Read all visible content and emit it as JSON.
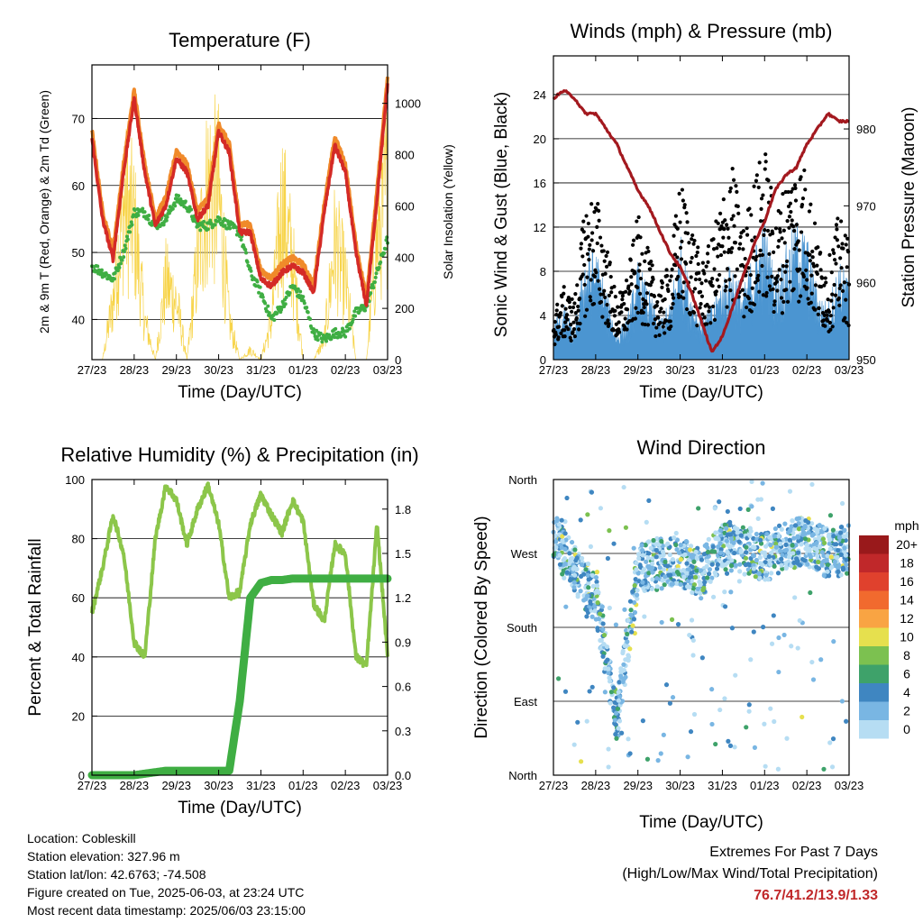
{
  "x_ticks": [
    "27/23",
    "28/23",
    "29/23",
    "30/23",
    "31/23",
    "01/23",
    "02/23",
    "03/23"
  ],
  "temperature": {
    "title": "Temperature (F)",
    "ylabel": "2m & 9m T (Red, Orange) & 2m Td (Green)",
    "ylabel2": "Solar Insolation (Yellow)",
    "xlabel": "Time (Day/UTC)",
    "yticks": [
      "40",
      "50",
      "60",
      "70"
    ],
    "y2ticks": [
      "0",
      "200",
      "400",
      "600",
      "800",
      "1000"
    ]
  },
  "winds": {
    "title": "Winds (mph) & Pressure (mb)",
    "ylabel": "Sonic Wind & Gust (Blue, Black)",
    "ylabel2": "Station Pressure (Maroon)",
    "xlabel": "Time (Day/UTC)",
    "yticks": [
      "0",
      "4",
      "8",
      "12",
      "16",
      "20",
      "24"
    ],
    "y2ticks": [
      "950",
      "960",
      "970",
      "980"
    ]
  },
  "humidity": {
    "title": "Relative Humidity (%) & Precipitation (in)",
    "ylabel": "Percent & Total Rainfall",
    "xlabel": "Time (Day/UTC)",
    "yticks": [
      "0",
      "20",
      "40",
      "60",
      "80",
      "100"
    ],
    "y2ticks": [
      "0.0",
      "0.3",
      "0.6",
      "0.9",
      "1.2",
      "1.5",
      "1.8"
    ]
  },
  "direction": {
    "title": "Wind Direction",
    "ylabel": "Direction (Colored By Speed)",
    "xlabel": "Time (Day/UTC)",
    "yticks": [
      "North",
      "East",
      "South",
      "West",
      "North"
    ],
    "legend_title": "mph",
    "legend_labels": [
      "20+",
      "18",
      "16",
      "14",
      "12",
      "10",
      "8",
      "6",
      "4",
      "2",
      "0"
    ],
    "legend_colors": [
      "#99191b",
      "#c0282a",
      "#e0412d",
      "#f16a2e",
      "#f9a443",
      "#e6e04e",
      "#7cc150",
      "#3ea26a",
      "#3f86c1",
      "#79b6e3",
      "#b6ddf3"
    ]
  },
  "footer": {
    "location": "Location: Cobleskill",
    "elevation": "Station elevation: 327.96 m",
    "latlon": "Station lat/lon: 42.6763; -74.508",
    "created": "Figure created on Tue, 2025-06-03, at 23:24 UTC",
    "recent": "Most recent data timestamp: 2025/06/03 23:15:00"
  },
  "extremes": {
    "title": "Extremes For Past 7 Days",
    "subtitle": "(High/Low/Max Wind/Total Precipitation)",
    "values": "76.7/41.2/13.9/1.33"
  },
  "chart_data": [
    {
      "type": "line",
      "panel": "temperature",
      "x_days": [
        0,
        0.25,
        0.5,
        0.75,
        1,
        1.25,
        1.5,
        1.75,
        2,
        2.25,
        2.5,
        2.75,
        3,
        3.25,
        3.5,
        3.75,
        4,
        4.25,
        4.5,
        4.75,
        5,
        5.25,
        5.5,
        5.75,
        6,
        6.25,
        6.5,
        6.75,
        7
      ],
      "series": [
        {
          "values": [
            67,
            55,
            49,
            62,
            73,
            62,
            54,
            57,
            64,
            62,
            55,
            57,
            68,
            65,
            53,
            53,
            46,
            45,
            47,
            48,
            47,
            44,
            56,
            66,
            62,
            50,
            42,
            58,
            75
          ]
        },
        {
          "values": [
            48,
            47,
            46,
            50,
            56,
            56,
            54,
            55,
            58,
            57,
            54,
            54,
            55,
            54,
            53,
            47,
            44,
            40,
            42,
            45,
            43,
            38,
            37,
            38,
            38,
            41,
            42,
            47,
            52
          ]
        },
        {
          "values": [
            0,
            0,
            300,
            800,
            700,
            200,
            0,
            400,
            300,
            0,
            500,
            900,
            850,
            200,
            0,
            50,
            0,
            200,
            800,
            500,
            0,
            0,
            100,
            600,
            400,
            0,
            0,
            600,
            900
          ]
        }
      ],
      "ylim": [
        34,
        78
      ],
      "y2lim": [
        0,
        1150
      ]
    },
    {
      "type": "line",
      "panel": "winds",
      "x_days": [
        0,
        0.25,
        0.5,
        0.75,
        1,
        1.25,
        1.5,
        1.75,
        2,
        2.25,
        2.5,
        2.75,
        3,
        3.25,
        3.5,
        3.75,
        4,
        4.25,
        4.5,
        4.75,
        5,
        5.25,
        5.5,
        5.75,
        6,
        6.25,
        6.5,
        6.75,
        7
      ],
      "series": [
        {
          "values": [
            3,
            4,
            2,
            8,
            8,
            5,
            2,
            3,
            7,
            5,
            3,
            4,
            9,
            5,
            3,
            4,
            6,
            7,
            5,
            8,
            10,
            6,
            8,
            10,
            9,
            5,
            4,
            7,
            6
          ]
        },
        {
          "values": [
            4,
            6,
            5,
            13,
            14,
            10,
            5,
            7,
            12,
            9,
            6,
            8,
            15,
            12,
            8,
            10,
            14,
            16,
            11,
            15,
            18,
            12,
            15,
            17,
            16,
            10,
            8,
            12,
            10
          ]
        },
        {
          "values": [
            984,
            985,
            984,
            982,
            982,
            980,
            978,
            975,
            972,
            970,
            967,
            964,
            962,
            959,
            955,
            951,
            953,
            957,
            961,
            965,
            968,
            972,
            974,
            975,
            978,
            980,
            982,
            981,
            981
          ]
        }
      ],
      "ylim": [
        0,
        27.5
      ],
      "y2lim": [
        950,
        989.5
      ]
    },
    {
      "type": "line",
      "panel": "humidity",
      "x_days": [
        0,
        0.25,
        0.5,
        0.75,
        1,
        1.25,
        1.5,
        1.75,
        2,
        2.25,
        2.5,
        2.75,
        3,
        3.25,
        3.5,
        3.75,
        4,
        4.25,
        4.5,
        4.75,
        5,
        5.25,
        5.5,
        5.75,
        6,
        6.25,
        6.5,
        6.75,
        7
      ],
      "series": [
        {
          "values": [
            55,
            70,
            88,
            75,
            45,
            40,
            80,
            98,
            93,
            78,
            90,
            98,
            85,
            60,
            62,
            85,
            95,
            88,
            82,
            93,
            86,
            58,
            52,
            78,
            75,
            40,
            37,
            85,
            40
          ]
        },
        {
          "values": [
            0,
            0,
            0,
            0,
            0,
            0.01,
            0.02,
            0.03,
            0.03,
            0.03,
            0.03,
            0.03,
            0.03,
            0.03,
            0.5,
            1.2,
            1.3,
            1.32,
            1.32,
            1.33,
            1.33,
            1.33,
            1.33,
            1.33,
            1.33,
            1.33,
            1.33,
            1.33,
            1.33
          ]
        }
      ],
      "ylim": [
        0,
        100
      ],
      "y2lim": [
        0,
        2.0
      ]
    },
    {
      "type": "scatter",
      "panel": "direction",
      "x_days": [
        0,
        0.5,
        1,
        1.5,
        2,
        2.5,
        3,
        3.5,
        4,
        4.5,
        5,
        5.5,
        6,
        6.5,
        7
      ],
      "y_deg": [
        290,
        250,
        215,
        70,
        250,
        260,
        260,
        245,
        280,
        275,
        265,
        280,
        285,
        270,
        275
      ],
      "ylim": [
        0,
        360
      ]
    }
  ]
}
